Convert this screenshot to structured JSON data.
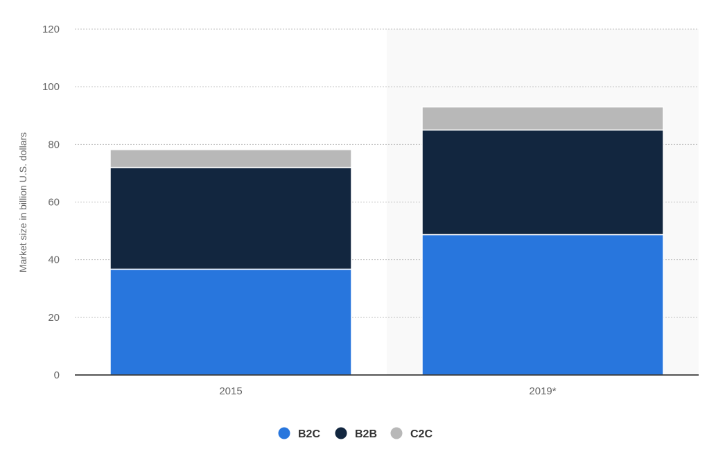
{
  "chart_data": {
    "type": "bar",
    "stacked": true,
    "categories": [
      "2015",
      "2019*"
    ],
    "series": [
      {
        "name": "B2C",
        "values": [
          36.7,
          48.7
        ],
        "color": "#2876dd"
      },
      {
        "name": "B2B",
        "values": [
          35.3,
          36.3
        ],
        "color": "#12263f"
      },
      {
        "name": "C2C",
        "values": [
          6.2,
          8.0
        ],
        "color": "#b8b8b8"
      }
    ],
    "title": "",
    "xlabel": "",
    "ylabel": "Market size in billion U.S. dollars",
    "ylim": [
      0,
      120
    ],
    "yticks": [
      0,
      20,
      40,
      60,
      80,
      100,
      120
    ],
    "grid": true,
    "grid_style": "dotted",
    "forecast_shading_category": "2019*",
    "forecast_shading_color": "#f9f9f9",
    "legend_placement": "bottom-center"
  }
}
